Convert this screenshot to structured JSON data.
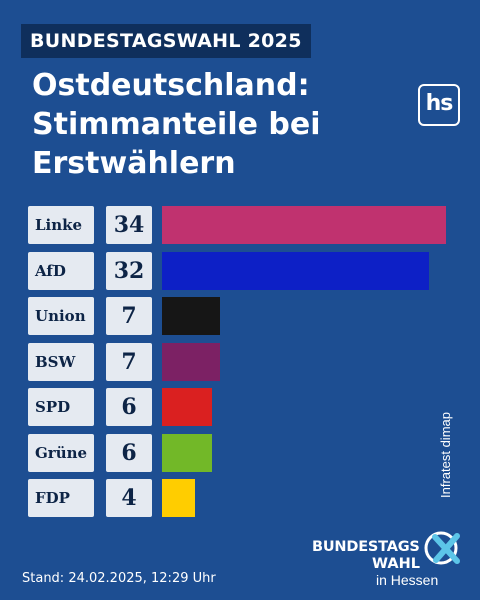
{
  "header": {
    "badge": "BUNDESTAGSWAHL 2025",
    "title_lines": [
      "Ostdeutschland:",
      "Stimmanteile bei",
      "Erstwählern"
    ],
    "logo": "hs"
  },
  "chart_data": {
    "type": "bar",
    "orientation": "horizontal",
    "categories": [
      "Linke",
      "AfD",
      "Union",
      "BSW",
      "SPD",
      "Grüne",
      "FDP"
    ],
    "values": [
      34,
      32,
      7,
      7,
      6,
      6,
      4
    ],
    "colors": [
      "#c0326f",
      "#0d20c6",
      "#161616",
      "#7c2164",
      "#da2020",
      "#72b828",
      "#ffcd00"
    ],
    "xlim": [
      0,
      34
    ]
  },
  "source": "Infratest dimap",
  "footer": {
    "stand": "Stand: 24.02.2025, 12:29 Uhr"
  },
  "event_logo": {
    "line1": "BUNDESTAGS",
    "line2": "WAHL",
    "line3": "in Hessen",
    "icon": "x-mark-icon"
  },
  "colors": {
    "background": "#1d4e92",
    "badge_background": "#0f2f5c",
    "cell_background": "#e5eaf1",
    "logo_accent": "#5cc5e8"
  }
}
